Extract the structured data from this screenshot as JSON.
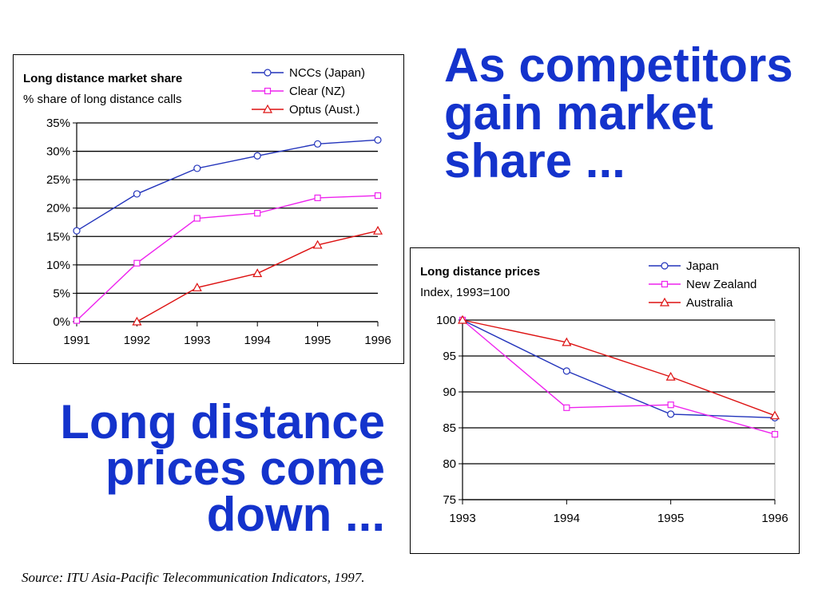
{
  "headlines": {
    "top": [
      "As competitors",
      "gain market",
      "share ..."
    ],
    "bottom": [
      "Long distance",
      "prices come",
      "down ..."
    ]
  },
  "source": "Source:  ITU Asia-Pacific Telecommunication Indicators, 1997.",
  "chart_data": [
    {
      "type": "line",
      "title": "Long distance market share",
      "subtitle": "% share of long distance calls",
      "x": [
        "1991",
        "1992",
        "1993",
        "1994",
        "1995",
        "1996"
      ],
      "ylim": [
        0,
        35
      ],
      "yticks": [
        0,
        5,
        10,
        15,
        20,
        25,
        30,
        35
      ],
      "ytick_labels": [
        "0%",
        "5%",
        "10%",
        "15%",
        "20%",
        "25%",
        "30%",
        "35%"
      ],
      "grid": true,
      "legend_position": "top-right",
      "series": [
        {
          "name": "NCCs (Japan)",
          "color": "#2233bb",
          "marker": "circle",
          "values": [
            16,
            22.5,
            27,
            29.2,
            31.3,
            32
          ]
        },
        {
          "name": "Clear (NZ)",
          "color": "#ee22ee",
          "marker": "square",
          "values": [
            0.2,
            10.3,
            18.2,
            19.1,
            21.8,
            22.2
          ]
        },
        {
          "name": "Optus (Aust.)",
          "color": "#dd1111",
          "marker": "triangle",
          "values": [
            null,
            0,
            6,
            8.5,
            13.5,
            16
          ]
        }
      ]
    },
    {
      "type": "line",
      "title": "Long distance prices",
      "subtitle": "Index, 1993=100",
      "x": [
        "1993",
        "1994",
        "1995",
        "1996"
      ],
      "ylim": [
        75,
        100
      ],
      "yticks": [
        75,
        80,
        85,
        90,
        95,
        100
      ],
      "ytick_labels": [
        "75",
        "80",
        "85",
        "90",
        "95",
        "100"
      ],
      "grid": true,
      "legend_position": "top-right",
      "series": [
        {
          "name": "Japan",
          "color": "#2233bb",
          "marker": "circle",
          "values": [
            100,
            92.9,
            86.9,
            86.4
          ]
        },
        {
          "name": "New Zealand",
          "color": "#ee22ee",
          "marker": "square",
          "values": [
            100,
            87.8,
            88.2,
            84.1
          ]
        },
        {
          "name": "Australia",
          "color": "#dd1111",
          "marker": "triangle",
          "values": [
            100,
            96.9,
            92.1,
            86.7
          ]
        }
      ]
    }
  ]
}
